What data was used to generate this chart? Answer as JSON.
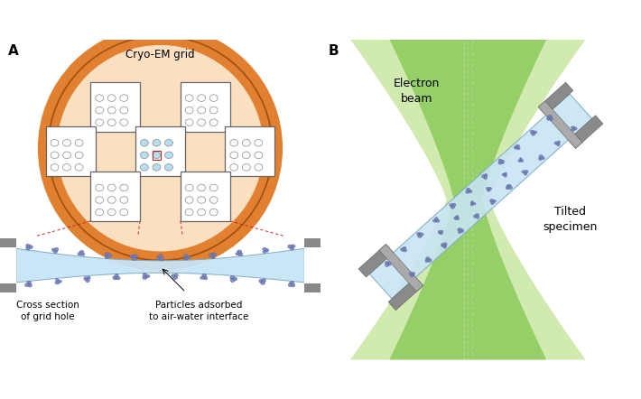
{
  "fig_width": 7.1,
  "fig_height": 4.42,
  "dpi": 100,
  "label_A": "A",
  "label_B": "B",
  "title_A": "Cryo-EM grid",
  "label_cross": "Cross section\nof grid hole",
  "label_particles": "Particles adsorbed\nto air-water interface",
  "label_beam": "Electron\nbeam",
  "label_tilted": "Tilted\nspecimen",
  "grid_outer_color": "#E08030",
  "grid_inner_color": "#FAE0C0",
  "square_color": "#FFFFFF",
  "square_border": "#666666",
  "hole_color_normal": "#FFFFFF",
  "hole_color_blue": "#B8DCF0",
  "hole_border": "#888888",
  "red_box_color": "#CC1111",
  "water_color": "#C8E4F5",
  "gray_dark": "#888888",
  "gray_light": "#BBBBBB",
  "particle_color": "#7080B8",
  "beam_green_outer": "#AADA70",
  "beam_green_inner": "#78C040",
  "beam_green_line": "#B8E080"
}
